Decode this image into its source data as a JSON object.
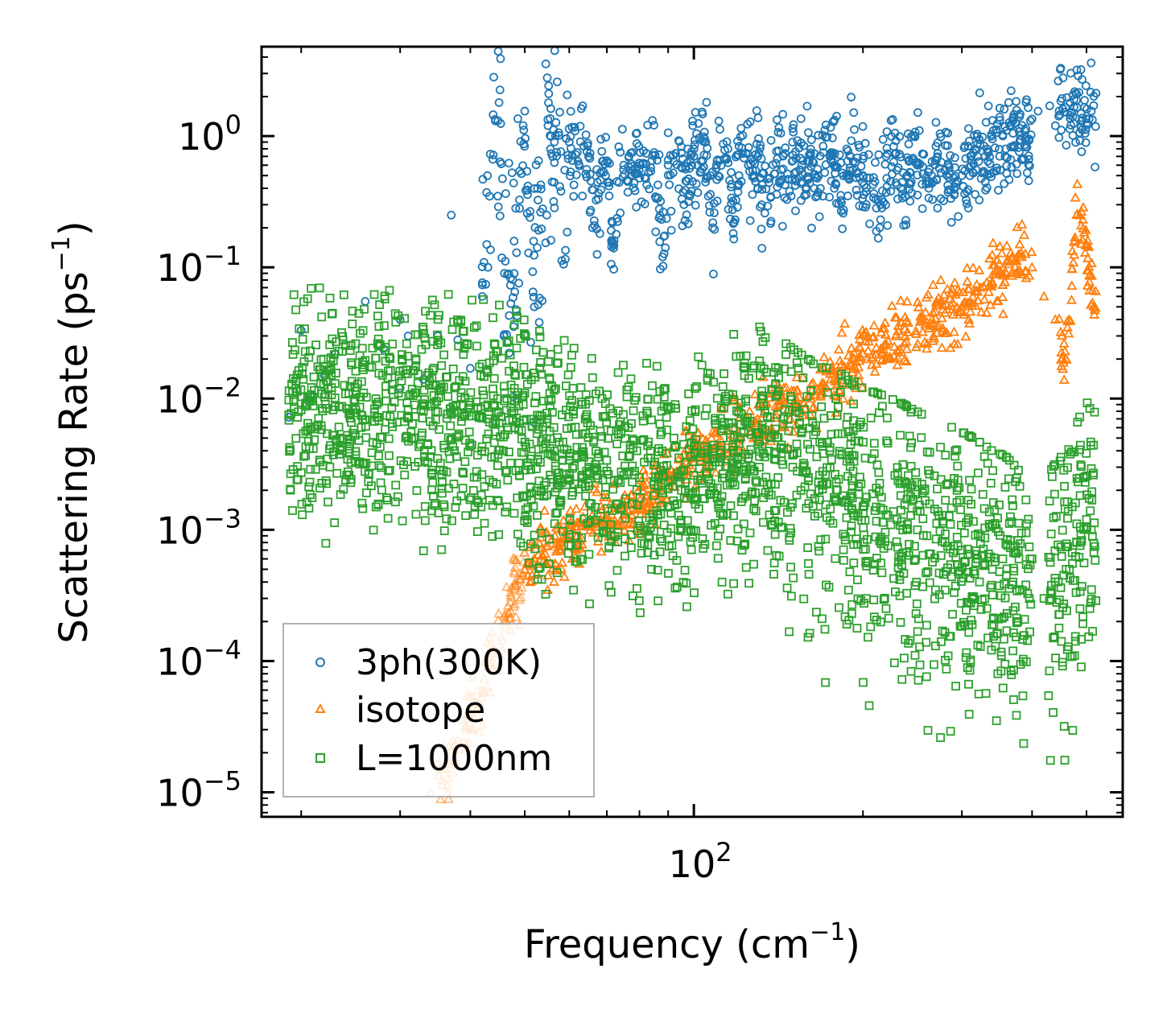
{
  "chart_data": {
    "type": "scatter",
    "xscale": "log",
    "yscale": "log",
    "xlim": [
      17,
      580
    ],
    "ylim": [
      6.5e-06,
      4.8
    ],
    "xlabel": "Frequency (cm",
    "xlabel_sup": "−1",
    "xlabel_end": ")",
    "ylabel": "Scattering Rate (ps",
    "ylabel_sup": "−1",
    "ylabel_end": ")",
    "x_ticks": [
      {
        "value": 100,
        "base": "10",
        "exp": "2"
      }
    ],
    "y_ticks": [
      {
        "value": 1,
        "base": "10",
        "exp": "0"
      },
      {
        "value": 0.1,
        "base": "10",
        "exp": "−1"
      },
      {
        "value": 0.01,
        "base": "10",
        "exp": "−2"
      },
      {
        "value": 0.001,
        "base": "10",
        "exp": "−3"
      },
      {
        "value": 0.0001,
        "base": "10",
        "exp": "−4"
      },
      {
        "value": 1e-05,
        "base": "10",
        "exp": "−5"
      }
    ],
    "legend_position": "lower-left",
    "series": [
      {
        "name": "3ph(300K)",
        "color": "#1f77b4",
        "marker": "circle",
        "x": [
          19,
          20,
          21,
          22,
          23,
          26,
          28,
          30,
          30,
          31,
          33,
          35,
          37,
          38,
          40,
          42,
          45,
          50,
          55,
          60,
          62,
          65,
          70,
          75,
          80,
          85,
          90,
          95,
          100,
          105,
          110,
          115,
          120,
          125,
          130,
          140,
          150,
          160,
          170,
          180,
          190,
          200,
          210,
          220,
          230,
          240,
          250,
          260,
          270,
          280,
          290,
          300,
          320,
          340,
          360,
          380,
          400,
          410,
          430,
          450,
          470,
          490,
          510,
          43,
          46,
          48,
          52,
          58,
          66,
          72,
          88,
          96,
          108,
          118,
          132,
          148,
          168,
          188,
          215,
          235,
          262,
          295,
          330,
          370,
          395,
          440,
          475
        ],
        "y": [
          0.0072,
          0.033,
          0.0105,
          0.015,
          0.022,
          0.055,
          0.024,
          0.04,
          0.012,
          0.03,
          0.014,
          0.03,
          0.25,
          0.028,
          0.017,
          0.06,
          1.8,
          1.55,
          1.2,
          0.9,
          0.75,
          0.7,
          0.65,
          0.6,
          0.62,
          0.75,
          0.6,
          0.58,
          0.7,
          0.9,
          0.65,
          0.8,
          0.72,
          0.6,
          0.7,
          0.62,
          0.65,
          0.55,
          0.75,
          0.58,
          0.7,
          0.5,
          0.45,
          0.7,
          0.55,
          0.5,
          0.6,
          0.45,
          0.65,
          0.55,
          0.48,
          0.5,
          0.7,
          0.95,
          1.1,
          1.15,
          1.35,
          1.55,
          1.7,
          1.85,
          1.5,
          1.3,
          1.55,
          0.1,
          0.09,
          0.065,
          0.05,
          0.38,
          0.2,
          0.14,
          0.12,
          0.3,
          0.2,
          0.22,
          0.3,
          0.38,
          0.4,
          0.35,
          0.3,
          0.36,
          0.4,
          0.45,
          0.7,
          1.05,
          0.95,
          1.2,
          1.9
        ]
      },
      {
        "name": "isotope",
        "color": "#ff7f0e",
        "marker": "triangle",
        "x": [
          34,
          36,
          38,
          40,
          42,
          43,
          44,
          46,
          48,
          50,
          52,
          55,
          58,
          62,
          66,
          70,
          75,
          80,
          85,
          90,
          95,
          100,
          110,
          120,
          130,
          140,
          150,
          160,
          170,
          180,
          190,
          200,
          220,
          240,
          260,
          280,
          300,
          320,
          340,
          360,
          380,
          400,
          420,
          440,
          460,
          480,
          500,
          515
        ],
        "y": [
          1e-05,
          1.5e-05,
          2.5e-05,
          4e-05,
          6e-05,
          9e-05,
          0.00012,
          0.0002,
          0.00035,
          0.0005,
          0.0006,
          0.00075,
          0.0008,
          0.0009,
          0.0011,
          0.0012,
          0.0013,
          0.0015,
          0.0019,
          0.0025,
          0.003,
          0.0035,
          0.0045,
          0.0055,
          0.0065,
          0.0075,
          0.009,
          0.0105,
          0.012,
          0.014,
          0.018,
          0.022,
          0.026,
          0.032,
          0.038,
          0.045,
          0.05,
          0.065,
          0.075,
          0.09,
          0.12,
          0.1,
          0.06,
          0.04,
          0.02,
          0.25,
          0.15,
          0.05
        ]
      },
      {
        "name": "L=1000nm",
        "color": "#2ca02c",
        "marker": "square",
        "x": [
          19,
          20,
          21,
          23,
          25,
          27,
          29,
          31,
          33,
          35,
          37,
          39,
          41,
          43,
          45,
          48,
          51,
          55,
          60,
          65,
          70,
          75,
          80,
          85,
          90,
          95,
          100,
          110,
          120,
          130,
          140,
          150,
          160,
          170,
          180,
          190,
          200,
          210,
          220,
          230,
          240,
          250,
          260,
          270,
          280,
          290,
          300,
          310,
          320,
          330,
          340,
          350,
          360,
          370,
          380,
          390,
          400,
          420,
          440,
          460,
          480,
          500,
          510
        ],
        "y": [
          0.0075,
          0.0082,
          0.0088,
          0.0087,
          0.0082,
          0.0078,
          0.0085,
          0.0083,
          0.008,
          0.0079,
          0.0078,
          0.0076,
          0.0074,
          0.007,
          0.0065,
          0.006,
          0.0045,
          0.0038,
          0.0034,
          0.003,
          0.0028,
          0.0026,
          0.0025,
          0.0022,
          0.0023,
          0.002,
          0.0026,
          0.0035,
          0.004,
          0.0045,
          0.0038,
          0.003,
          0.0025,
          0.0022,
          0.002,
          0.0018,
          0.0015,
          0.0014,
          0.0013,
          0.0012,
          0.0011,
          0.001,
          0.0009,
          0.00085,
          0.0008,
          0.00075,
          0.0007,
          0.00065,
          0.0006,
          0.00055,
          0.0005,
          0.00048,
          0.00045,
          0.0004,
          0.00035,
          0.00038,
          0.0006,
          0.0003,
          0.0004,
          0.0005,
          0.0008,
          0.0012,
          0.001
        ]
      }
    ]
  }
}
